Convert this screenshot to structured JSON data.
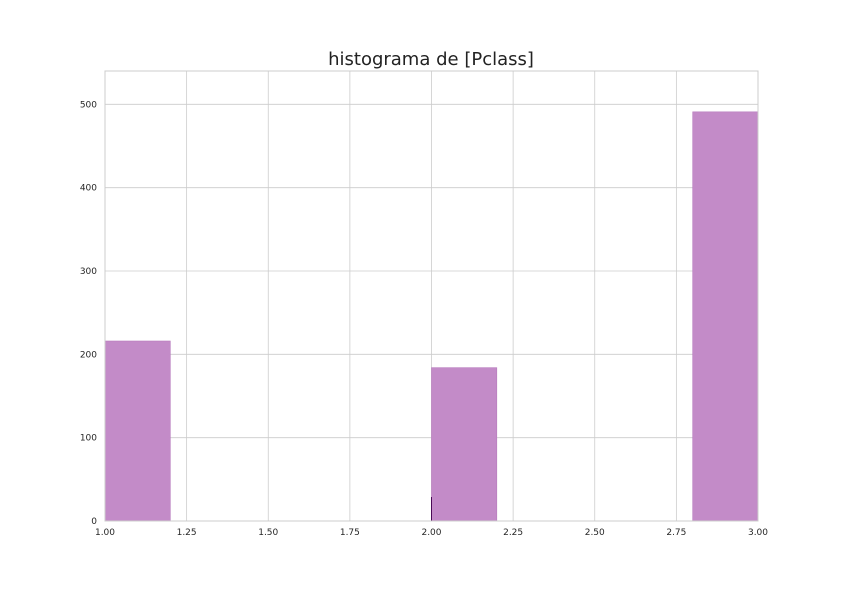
{
  "chart_data": {
    "type": "bar",
    "title": "histograma de [Pclass]",
    "xlabel": "",
    "ylabel": "",
    "xlim": [
      1.0,
      3.0
    ],
    "ylim": [
      0,
      540
    ],
    "x_ticks": [
      "1.00",
      "1.25",
      "1.50",
      "1.75",
      "2.00",
      "2.25",
      "2.50",
      "2.75",
      "3.00"
    ],
    "y_ticks": [
      "0",
      "100",
      "200",
      "300",
      "400",
      "500"
    ],
    "bins": [
      {
        "x_start": 1.0,
        "x_end": 1.2,
        "value": 216
      },
      {
        "x_start": 2.0,
        "x_end": 2.2,
        "value": 184
      },
      {
        "x_start": 2.8,
        "x_end": 3.0,
        "value": 491
      }
    ],
    "grid": true,
    "bar_color": "#c38bc8",
    "bar_edge_color": "#b77bbd",
    "rug_marks": [
      1.0,
      2.0,
      3.0
    ],
    "rug_color": "#4b0a57"
  }
}
